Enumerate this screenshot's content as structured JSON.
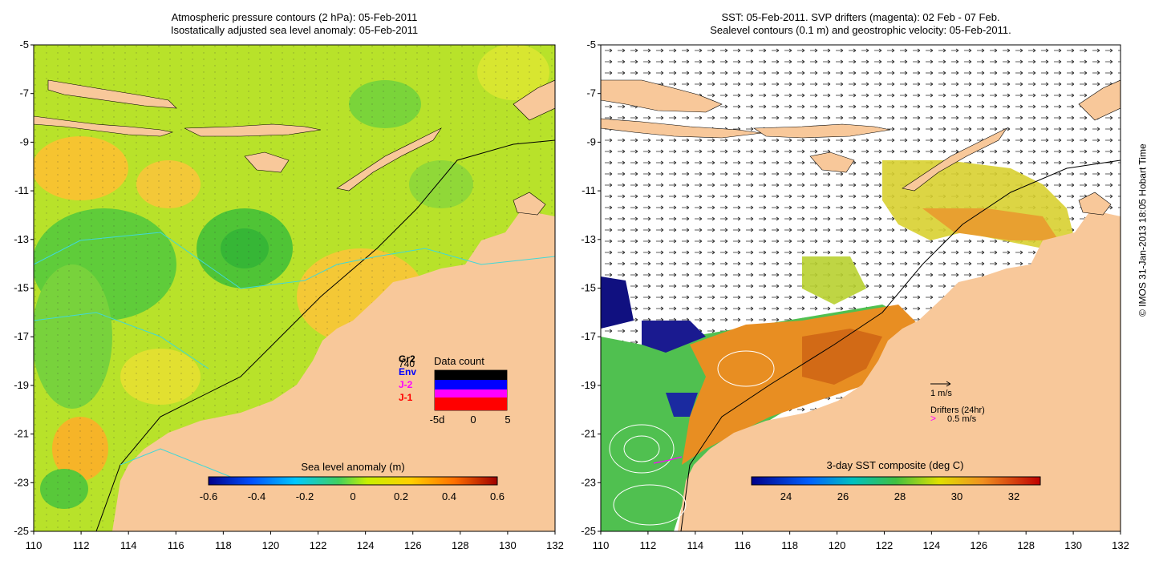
{
  "left_panel": {
    "title_line1": "Atmospheric pressure contours (2 hPa): 05-Feb-2011",
    "title_line2": "Isostatically adjusted sea level anomaly: 05-Feb-2011",
    "colorbar_label": "Sea level anomaly (m)",
    "colorbar_ticks": [
      "-0.6",
      "-0.4",
      "-0.2",
      "0",
      "0.2",
      "0.4",
      "0.6"
    ],
    "inset": {
      "title": "Data count",
      "count_number": "740",
      "satellites": [
        {
          "label": "Gr2",
          "color": "#000000"
        },
        {
          "label": "Env",
          "color": "#0000ff"
        },
        {
          "label": "J-2",
          "color": "#ff00ff"
        },
        {
          "label": "J-1",
          "color": "#ff0000"
        }
      ],
      "x_ticks": [
        "-5d",
        "0",
        "5"
      ]
    }
  },
  "right_panel": {
    "title_line1": "SST: 05-Feb-2011. SVP drifters (magenta): 02 Feb - 07 Feb.",
    "title_line2": "Sealevel contours (0.1 m) and geostrophic velocity: 05-Feb-2011.",
    "colorbar_label": "3-day SST composite (deg C)",
    "colorbar_ticks": [
      "24",
      "26",
      "28",
      "30",
      "32"
    ],
    "legend_velocity": "1 m/s",
    "legend_drifters_title": "Drifters (24hr)",
    "legend_drifters_value": "0.5 m/s",
    "legend_drifters_symbol": ">",
    "drifter_color": "#ff00ff"
  },
  "axes": {
    "lat_ticks": [
      "-5",
      "-7",
      "-9",
      "-11",
      "-13",
      "-15",
      "-17",
      "-19",
      "-21",
      "-23",
      "-25"
    ],
    "lon_ticks": [
      "110",
      "112",
      "114",
      "116",
      "118",
      "120",
      "122",
      "124",
      "126",
      "128",
      "130",
      "132"
    ]
  },
  "credit": "© IMOS 31-Jan-2013 18:05 Hobart Time",
  "colors": {
    "land": "#f8c89a",
    "ocean_anomaly_base": "#aee030",
    "sst_base": "#e08a1e"
  }
}
